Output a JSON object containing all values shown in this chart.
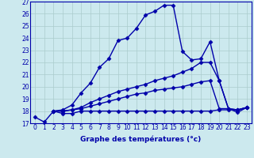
{
  "xlabel": "Graphe des températures (°c)",
  "xlim": [
    -0.5,
    23.5
  ],
  "ylim": [
    17,
    27
  ],
  "xticks": [
    0,
    1,
    2,
    3,
    4,
    5,
    6,
    7,
    8,
    9,
    10,
    11,
    12,
    13,
    14,
    15,
    16,
    17,
    18,
    19,
    20,
    21,
    22,
    23
  ],
  "yticks": [
    17,
    18,
    19,
    20,
    21,
    22,
    23,
    24,
    25,
    26,
    27
  ],
  "background_color": "#cce9ee",
  "grid_color": "#aacccc",
  "line_color": "#0000aa",
  "lines": [
    {
      "x": [
        0,
        1,
        2,
        3,
        4,
        5,
        6,
        7,
        8,
        9,
        10,
        11,
        12,
        13,
        14,
        15,
        16,
        17,
        18,
        19,
        20,
        21,
        22,
        23
      ],
      "y": [
        17.5,
        17.1,
        18.0,
        18.1,
        18.5,
        19.5,
        20.3,
        21.6,
        22.3,
        23.8,
        24.0,
        24.8,
        25.9,
        26.2,
        26.7,
        26.7,
        22.9,
        22.2,
        22.3,
        23.7,
        20.5,
        18.2,
        17.9,
        18.3
      ],
      "marker": "D",
      "markersize": 2.5,
      "linewidth": 1.0
    },
    {
      "x": [
        2,
        3,
        4,
        5,
        6,
        7,
        8,
        9,
        10,
        11,
        12,
        13,
        14,
        15,
        16,
        17,
        18,
        19,
        20,
        21,
        22,
        23
      ],
      "y": [
        18.0,
        18.0,
        18.1,
        18.3,
        18.7,
        19.0,
        19.3,
        19.6,
        19.8,
        20.0,
        20.2,
        20.5,
        20.7,
        20.9,
        21.2,
        21.5,
        22.0,
        22.0,
        20.5,
        18.2,
        18.1,
        18.3
      ],
      "marker": "D",
      "markersize": 2.5,
      "linewidth": 1.0
    },
    {
      "x": [
        2,
        3,
        4,
        5,
        6,
        7,
        8,
        9,
        10,
        11,
        12,
        13,
        14,
        15,
        16,
        17,
        18,
        19,
        20,
        21,
        22,
        23
      ],
      "y": [
        18.0,
        18.0,
        18.1,
        18.2,
        18.4,
        18.6,
        18.8,
        19.0,
        19.2,
        19.4,
        19.5,
        19.7,
        19.8,
        19.9,
        20.0,
        20.2,
        20.4,
        20.5,
        18.2,
        18.2,
        18.1,
        18.3
      ],
      "marker": "D",
      "markersize": 2.5,
      "linewidth": 1.0
    },
    {
      "x": [
        2,
        3,
        4,
        5,
        6,
        7,
        8,
        9,
        10,
        11,
        12,
        13,
        14,
        15,
        16,
        17,
        18,
        19,
        20,
        21,
        22,
        23
      ],
      "y": [
        18.0,
        17.8,
        17.8,
        18.0,
        18.0,
        18.0,
        18.0,
        18.0,
        18.0,
        18.0,
        18.0,
        18.0,
        18.0,
        18.0,
        18.0,
        18.0,
        18.0,
        18.0,
        18.1,
        18.1,
        18.1,
        18.3
      ],
      "marker": "D",
      "markersize": 2.5,
      "linewidth": 1.0
    }
  ],
  "tick_fontsize": 5.5,
  "xlabel_fontsize": 6.5,
  "figsize": [
    3.2,
    2.0
  ],
  "dpi": 100
}
